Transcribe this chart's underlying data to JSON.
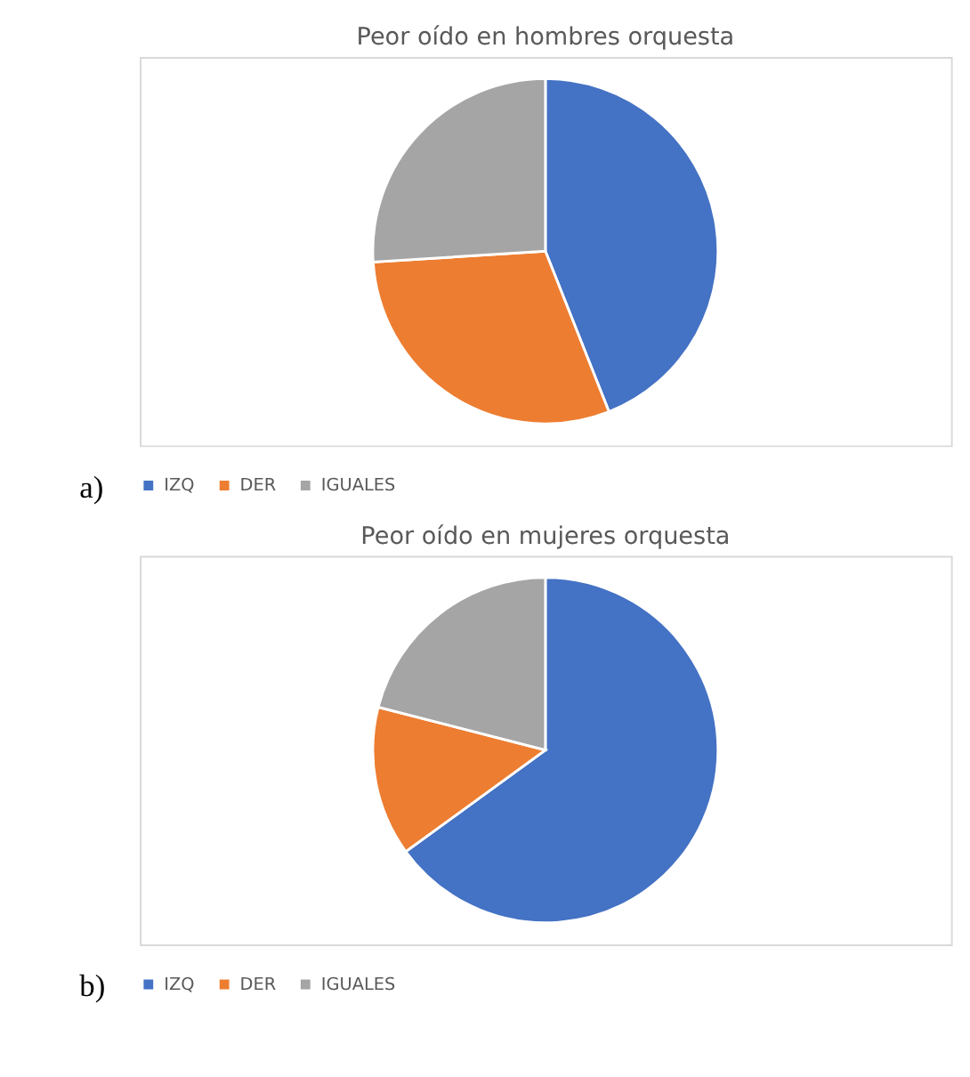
{
  "chart_data": [
    {
      "type": "pie",
      "title": "Peor oído en hombres orquesta",
      "categories": [
        "IZQ",
        "DER",
        "IGUALES"
      ],
      "values": [
        44,
        30,
        26
      ],
      "colors": [
        "#4472c4",
        "#ed7d31",
        "#a5a5a5"
      ],
      "legend": "bottom",
      "annotations": [
        "a)"
      ]
    },
    {
      "type": "pie",
      "title": "Peor oído en mujeres orquesta",
      "categories": [
        "IZQ",
        "DER",
        "IGUALES"
      ],
      "values": [
        65,
        14,
        21
      ],
      "colors": [
        "#4472c4",
        "#ed7d31",
        "#a5a5a5"
      ],
      "legend": "bottom",
      "annotations": [
        "b)"
      ]
    }
  ]
}
